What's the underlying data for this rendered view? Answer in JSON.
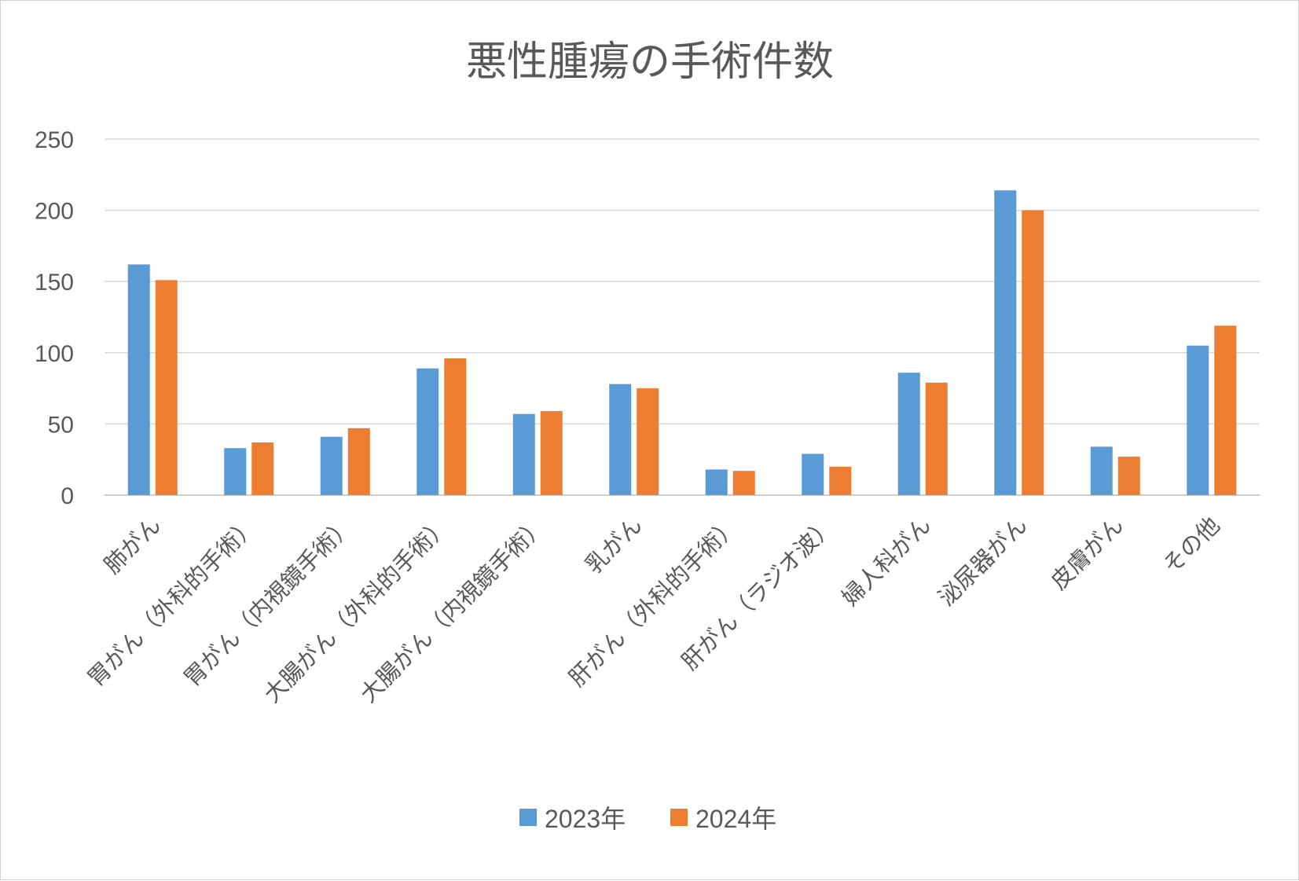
{
  "chart_data": {
    "type": "bar",
    "title": "悪性腫瘍の手術件数",
    "categories": [
      "肺がん",
      "胃がん（外科的手術）",
      "胃がん（内視鏡手術）",
      "大腸がん（外科的手術）",
      "大腸がん（内視鏡手術）",
      "乳がん",
      "肝がん（外科的手術）",
      "肝がん（ラジオ波）",
      "婦人科がん",
      "泌尿器がん",
      "皮膚がん",
      "その他"
    ],
    "series": [
      {
        "name": "2023年",
        "color": "#5b9bd5",
        "values": [
          162,
          33,
          41,
          89,
          57,
          78,
          18,
          29,
          86,
          214,
          34,
          105
        ]
      },
      {
        "name": "2024年",
        "color": "#ed7d31",
        "values": [
          151,
          37,
          47,
          96,
          59,
          75,
          17,
          20,
          79,
          200,
          27,
          119
        ]
      }
    ],
    "xlabel": "",
    "ylabel": "",
    "ylim": [
      0,
      250
    ],
    "yticks": [
      0,
      50,
      100,
      150,
      200,
      250
    ],
    "grid": true,
    "legend": "bottom"
  }
}
